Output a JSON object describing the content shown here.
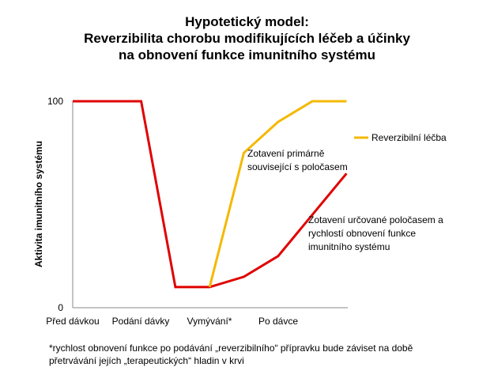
{
  "title_lines": [
    "Hypotetický model:",
    "Reverzibilita chorobu modifikujících léčeb a účinky",
    "na obnovení funkce imunitního systému"
  ],
  "footnote_lines": [
    "*rychlost obnovení funkce po podávání „reverzibilního“ přípravku bude záviset na době",
    "přetrvávání jejích „terapeutických“ hladin v krvi"
  ],
  "colors": {
    "red": "#e00000",
    "yellow": "#f5b800",
    "axis": "#8a8a8a"
  },
  "chart_data": {
    "type": "line",
    "ylabel": "Aktivita imunitního systému",
    "xlabel": "",
    "ylim": [
      0,
      100
    ],
    "y_ticks": [
      "100",
      "0"
    ],
    "x_ticks": [
      "Před dávkou",
      "Podání dávky",
      "Vymývání*",
      "Po dávce"
    ],
    "grid": false,
    "legend_position": "right",
    "series": [
      {
        "name": "Reverzibilní léčba",
        "color": "#f5b800",
        "x": [
          4,
          5,
          6,
          7,
          8
        ],
        "y": [
          10,
          75,
          90,
          100,
          100
        ]
      },
      {
        "color": "#e00000",
        "x": [
          0,
          2,
          3,
          4,
          5,
          6,
          8
        ],
        "y": [
          100,
          100,
          10,
          10,
          15,
          25,
          65
        ]
      }
    ],
    "annotations": [
      {
        "lines": [
          "Zotavení primárně",
          "související s poločasem"
        ]
      },
      {
        "lines": [
          "Zotavení určované poločasem a",
          "rychlostí obnovení funkce",
          "imunitního systému"
        ]
      }
    ]
  }
}
